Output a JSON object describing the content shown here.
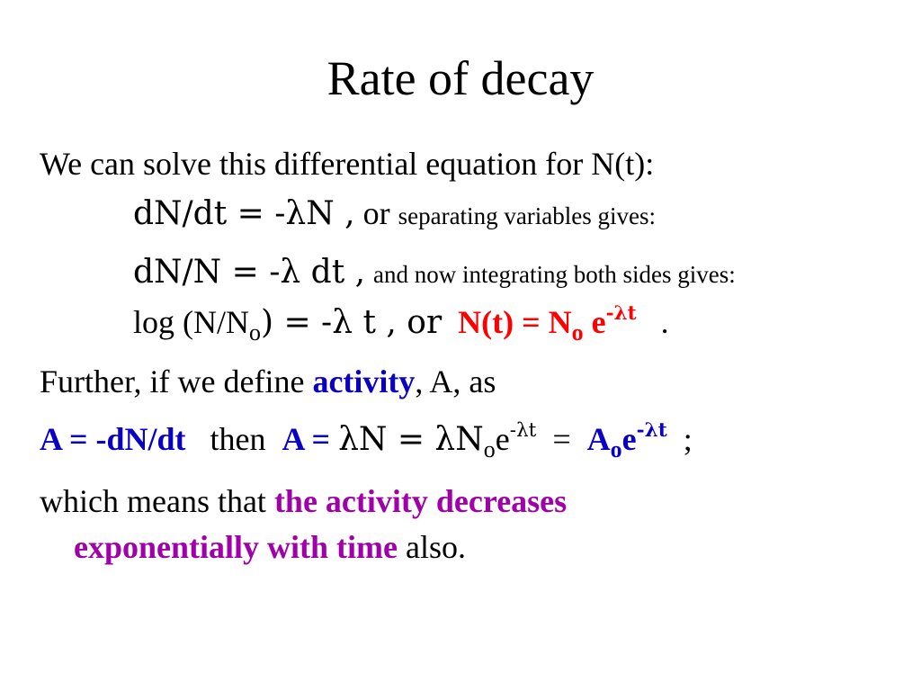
{
  "slide": {
    "title": "Rate of decay",
    "line1": "We can solve this differential equation for N(t):",
    "line2": {
      "eq": "dN/dt = -λN  ,",
      "or": "or",
      "note": "separating variables gives:"
    },
    "line3": {
      "eq": "dN/N = -λ dt  ,",
      "note": "and now integrating both sides gives:"
    },
    "line4": {
      "log_start": "log (N/N",
      "log_sub": "o",
      "log_end": ") = -λ t   ,   or",
      "result_start": "N(t) = N",
      "result_sub": "o",
      "result_e": "e",
      "result_exp": "-λt",
      "period": "."
    },
    "line5": {
      "start": "Further, if we define",
      "keyword": "activity",
      "end": ", A, as"
    },
    "line6": {
      "def": "A = -dN/dt",
      "then": "then",
      "a_eq": "A =",
      "lambda_n": "λN = λN",
      "sub1": "o",
      "e1": "e",
      "exp1": "-λt",
      "equals": "=",
      "a0": "A",
      "sub2": "o",
      "e2": "e",
      "exp2": "-λt",
      "semicolon": ";"
    },
    "line7": {
      "start": "which means that",
      "highlight": "the activity decreases"
    },
    "line8": {
      "highlight": "exponentially with time",
      "end": "also."
    }
  }
}
